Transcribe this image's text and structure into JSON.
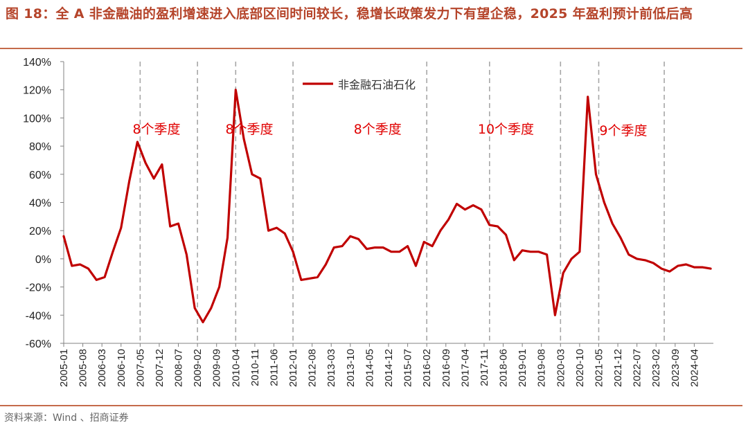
{
  "title": "图 18：全 A 非金融油的盈利增速进入底部区间时间较长，稳增长政策发力下有望企稳，2025 年盈利预计前低后高",
  "source": "资料来源：Wind 、招商证券",
  "colors": {
    "line": "#c00000",
    "title": "#b5442a",
    "annotation": "#e00000",
    "divider": "#a6a6a6"
  },
  "chart_data": {
    "type": "line",
    "ylim": [
      -60,
      140
    ],
    "yticks": [
      -60,
      -40,
      -20,
      0,
      20,
      40,
      60,
      80,
      100,
      120,
      140
    ],
    "ytick_labels": [
      "-60%",
      "-40%",
      "-20%",
      "0%",
      "20%",
      "40%",
      "60%",
      "80%",
      "100%",
      "120%",
      "140%"
    ],
    "xtick_labels": [
      "2005-01",
      "2005-08",
      "2006-03",
      "2006-10",
      "2007-05",
      "2007-12",
      "2008-07",
      "2009-02",
      "2009-09",
      "2010-04",
      "2010-11",
      "2011-06",
      "2012-01",
      "2012-08",
      "2013-03",
      "2013-10",
      "2014-05",
      "2014-12",
      "2015-07",
      "2016-02",
      "2016-09",
      "2017-04",
      "2017-11",
      "2018-06",
      "2019-01",
      "2019-08",
      "2020-03",
      "2020-10",
      "2021-05",
      "2021-12",
      "2022-07",
      "2023-02",
      "2023-09",
      "2024-04"
    ],
    "legend": "top-center",
    "series": [
      {
        "name": "非金融石油石化",
        "x": [
          "2005-01",
          "2005-04",
          "2005-07",
          "2005-10",
          "2006-01",
          "2006-04",
          "2006-07",
          "2006-10",
          "2007-01",
          "2007-04",
          "2007-07",
          "2007-10",
          "2008-01",
          "2008-04",
          "2008-07",
          "2008-10",
          "2009-01",
          "2009-04",
          "2009-07",
          "2009-10",
          "2010-01",
          "2010-04",
          "2010-07",
          "2010-10",
          "2011-01",
          "2011-04",
          "2011-07",
          "2011-10",
          "2012-01",
          "2012-04",
          "2012-07",
          "2012-10",
          "2013-01",
          "2013-04",
          "2013-07",
          "2013-10",
          "2014-01",
          "2014-04",
          "2014-07",
          "2014-10",
          "2015-01",
          "2015-04",
          "2015-07",
          "2015-10",
          "2016-01",
          "2016-04",
          "2016-07",
          "2016-10",
          "2017-01",
          "2017-04",
          "2017-07",
          "2017-10",
          "2018-01",
          "2018-04",
          "2018-07",
          "2018-10",
          "2019-01",
          "2019-04",
          "2019-07",
          "2019-10",
          "2020-01",
          "2020-04",
          "2020-07",
          "2020-10",
          "2021-01",
          "2021-04",
          "2021-07",
          "2021-10",
          "2022-01",
          "2022-04",
          "2022-07",
          "2022-10",
          "2023-01",
          "2023-04",
          "2023-07",
          "2023-10",
          "2024-01",
          "2024-04",
          "2024-07",
          "2024-10"
        ],
        "values": [
          16,
          -5,
          -4,
          -7,
          -15,
          -13,
          5,
          22,
          55,
          83,
          68,
          57,
          67,
          23,
          25,
          3,
          -35,
          -45,
          -35,
          -20,
          15,
          120,
          85,
          60,
          57,
          20,
          22,
          18,
          5,
          -15,
          -14,
          -13,
          -4,
          8,
          9,
          16,
          14,
          7,
          8,
          8,
          5,
          5,
          9,
          -5,
          12,
          9,
          20,
          28,
          39,
          35,
          38,
          35,
          24,
          23,
          17,
          -1,
          6,
          5,
          5,
          3,
          -40,
          -10,
          0,
          5,
          115,
          60,
          40,
          25,
          15,
          3,
          0,
          -1,
          -3,
          -7,
          -9,
          -5,
          -4,
          -6,
          -6,
          -7
        ]
      }
    ],
    "annotations": [
      {
        "text": "8个季度",
        "x": "2007-11",
        "y": 89
      },
      {
        "text": "8个季度",
        "x": "2010-09",
        "y": 89
      },
      {
        "text": "8个季度",
        "x": "2014-08",
        "y": 89
      },
      {
        "text": "10个季度",
        "x": "2018-07",
        "y": 89
      },
      {
        "text": "9个季度",
        "x": "2022-02",
        "y": 88
      }
    ],
    "dividers": [
      "2007-05",
      "2009-02",
      "2010-04",
      "2012-01",
      "2016-02",
      "2018-01",
      "2020-03",
      "2021-05",
      "2023-05"
    ]
  }
}
